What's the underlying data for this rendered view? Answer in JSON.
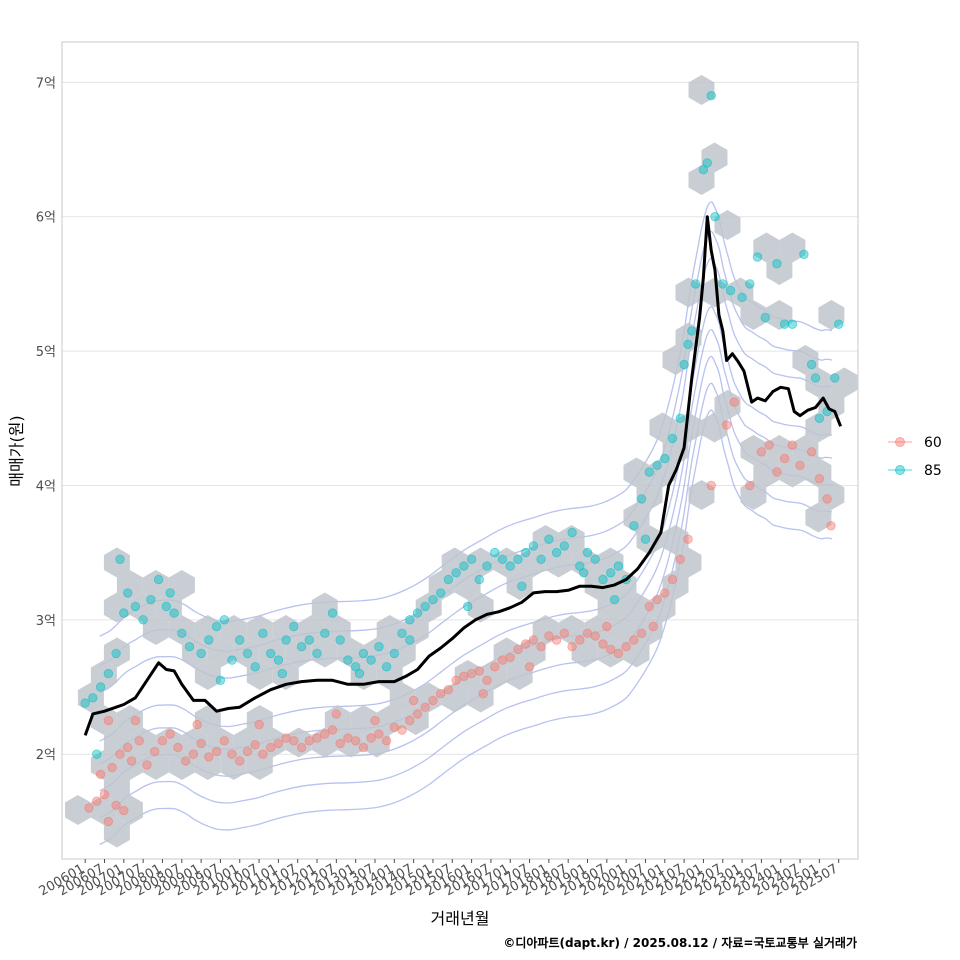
{
  "chart_data": {
    "type": "scatter",
    "xlabel": "거래년월",
    "ylabel": "매매가(원)",
    "caption": "©디아파트(dapt.kr) / 2025.08.12 / 자료=국토교통부 실거래가",
    "y_ticks": [
      {
        "value": 2,
        "label": "2억"
      },
      {
        "value": 3,
        "label": "3억"
      },
      {
        "value": 4,
        "label": "4억"
      },
      {
        "value": 5,
        "label": "5억"
      },
      {
        "value": 6,
        "label": "6억"
      },
      {
        "value": 7,
        "label": "7억"
      }
    ],
    "ylim": [
      1.22,
      7.3
    ],
    "xlim": [
      2005.4,
      2026.0
    ],
    "x_ticks": [
      "200601",
      "200607",
      "200701",
      "200707",
      "200801",
      "200807",
      "200901",
      "200907",
      "201001",
      "201007",
      "201101",
      "201107",
      "201201",
      "201207",
      "201301",
      "201307",
      "201401",
      "201407",
      "201501",
      "201507",
      "201601",
      "201607",
      "201701",
      "201707",
      "201801",
      "201807",
      "201901",
      "201907",
      "202001",
      "202007",
      "202101",
      "202107",
      "202201",
      "202207",
      "202301",
      "202307",
      "202401",
      "202407",
      "202501",
      "202507"
    ],
    "legend": {
      "position": "right",
      "entries": [
        {
          "label": "60",
          "color": "#F8766D"
        },
        {
          "label": "85",
          "color": "#00BFC4"
        }
      ]
    },
    "hexbin_color": "#bfc5cc",
    "contour_color": "#6f86e0",
    "trend": {
      "name": "",
      "color": "#000000",
      "points": [
        [
          2006.0,
          2.14
        ],
        [
          2006.2,
          2.3
        ],
        [
          2006.5,
          2.32
        ],
        [
          2006.8,
          2.35
        ],
        [
          2007.0,
          2.37
        ],
        [
          2007.3,
          2.42
        ],
        [
          2007.6,
          2.55
        ],
        [
          2007.9,
          2.68
        ],
        [
          2008.1,
          2.63
        ],
        [
          2008.3,
          2.62
        ],
        [
          2008.5,
          2.52
        ],
        [
          2008.8,
          2.4
        ],
        [
          2009.1,
          2.4
        ],
        [
          2009.4,
          2.32
        ],
        [
          2009.7,
          2.34
        ],
        [
          2010.0,
          2.35
        ],
        [
          2010.4,
          2.42
        ],
        [
          2010.8,
          2.48
        ],
        [
          2011.2,
          2.52
        ],
        [
          2011.6,
          2.54
        ],
        [
          2012.0,
          2.55
        ],
        [
          2012.4,
          2.55
        ],
        [
          2012.8,
          2.52
        ],
        [
          2013.2,
          2.52
        ],
        [
          2013.6,
          2.54
        ],
        [
          2014.0,
          2.54
        ],
        [
          2014.3,
          2.58
        ],
        [
          2014.6,
          2.63
        ],
        [
          2014.9,
          2.73
        ],
        [
          2015.2,
          2.79
        ],
        [
          2015.5,
          2.86
        ],
        [
          2015.8,
          2.94
        ],
        [
          2016.1,
          3.0
        ],
        [
          2016.4,
          3.04
        ],
        [
          2016.7,
          3.06
        ],
        [
          2017.0,
          3.09
        ],
        [
          2017.3,
          3.13
        ],
        [
          2017.6,
          3.2
        ],
        [
          2017.9,
          3.21
        ],
        [
          2018.2,
          3.21
        ],
        [
          2018.5,
          3.22
        ],
        [
          2018.8,
          3.25
        ],
        [
          2019.1,
          3.25
        ],
        [
          2019.4,
          3.24
        ],
        [
          2019.7,
          3.26
        ],
        [
          2020.0,
          3.3
        ],
        [
          2020.3,
          3.38
        ],
        [
          2020.6,
          3.5
        ],
        [
          2020.9,
          3.65
        ],
        [
          2021.1,
          4.0
        ],
        [
          2021.3,
          4.12
        ],
        [
          2021.5,
          4.28
        ],
        [
          2021.7,
          4.8
        ],
        [
          2021.9,
          5.25
        ],
        [
          2022.0,
          5.55
        ],
        [
          2022.1,
          6.0
        ],
        [
          2022.2,
          5.75
        ],
        [
          2022.3,
          5.6
        ],
        [
          2022.4,
          5.27
        ],
        [
          2022.5,
          5.15
        ],
        [
          2022.6,
          4.93
        ],
        [
          2022.75,
          4.98
        ],
        [
          2022.9,
          4.92
        ],
        [
          2023.05,
          4.85
        ],
        [
          2023.25,
          4.62
        ],
        [
          2023.4,
          4.65
        ],
        [
          2023.6,
          4.63
        ],
        [
          2023.8,
          4.7
        ],
        [
          2024.0,
          4.73
        ],
        [
          2024.2,
          4.72
        ],
        [
          2024.35,
          4.55
        ],
        [
          2024.5,
          4.52
        ],
        [
          2024.7,
          4.56
        ],
        [
          2024.9,
          4.58
        ],
        [
          2025.1,
          4.65
        ],
        [
          2025.25,
          4.57
        ],
        [
          2025.4,
          4.55
        ],
        [
          2025.55,
          4.44
        ]
      ]
    },
    "series": [
      {
        "name": "60",
        "color": "#F8766D",
        "points": [
          [
            2006.1,
            1.6
          ],
          [
            2006.3,
            1.65
          ],
          [
            2006.5,
            1.7
          ],
          [
            2006.6,
            1.5
          ],
          [
            2006.8,
            1.62
          ],
          [
            2007.0,
            1.58
          ],
          [
            2006.4,
            1.85
          ],
          [
            2006.7,
            1.9
          ],
          [
            2006.9,
            2.0
          ],
          [
            2007.1,
            2.05
          ],
          [
            2007.2,
            1.95
          ],
          [
            2007.4,
            2.1
          ],
          [
            2007.6,
            1.92
          ],
          [
            2007.8,
            2.02
          ],
          [
            2008.0,
            2.1
          ],
          [
            2008.2,
            2.15
          ],
          [
            2008.4,
            2.05
          ],
          [
            2008.6,
            1.95
          ],
          [
            2008.8,
            2.0
          ],
          [
            2009.0,
            2.08
          ],
          [
            2009.2,
            1.98
          ],
          [
            2009.4,
            2.02
          ],
          [
            2009.6,
            2.1
          ],
          [
            2009.8,
            2.0
          ],
          [
            2010.0,
            1.95
          ],
          [
            2010.2,
            2.02
          ],
          [
            2010.4,
            2.07
          ],
          [
            2010.6,
            2.0
          ],
          [
            2010.8,
            2.05
          ],
          [
            2011.0,
            2.08
          ],
          [
            2011.2,
            2.12
          ],
          [
            2011.4,
            2.1
          ],
          [
            2011.6,
            2.05
          ],
          [
            2011.8,
            2.1
          ],
          [
            2012.0,
            2.12
          ],
          [
            2012.2,
            2.15
          ],
          [
            2012.4,
            2.18
          ],
          [
            2012.6,
            2.08
          ],
          [
            2012.8,
            2.12
          ],
          [
            2013.0,
            2.1
          ],
          [
            2013.2,
            2.05
          ],
          [
            2013.4,
            2.12
          ],
          [
            2013.6,
            2.15
          ],
          [
            2013.8,
            2.1
          ],
          [
            2014.0,
            2.2
          ],
          [
            2014.2,
            2.18
          ],
          [
            2014.4,
            2.25
          ],
          [
            2014.6,
            2.3
          ],
          [
            2014.8,
            2.35
          ],
          [
            2015.0,
            2.4
          ],
          [
            2015.2,
            2.45
          ],
          [
            2015.4,
            2.48
          ],
          [
            2015.6,
            2.55
          ],
          [
            2015.8,
            2.58
          ],
          [
            2016.0,
            2.6
          ],
          [
            2016.2,
            2.62
          ],
          [
            2016.4,
            2.55
          ],
          [
            2016.6,
            2.65
          ],
          [
            2016.8,
            2.7
          ],
          [
            2017.0,
            2.72
          ],
          [
            2017.2,
            2.78
          ],
          [
            2017.4,
            2.82
          ],
          [
            2017.6,
            2.85
          ],
          [
            2017.8,
            2.8
          ],
          [
            2018.0,
            2.88
          ],
          [
            2018.2,
            2.85
          ],
          [
            2018.4,
            2.9
          ],
          [
            2018.6,
            2.8
          ],
          [
            2018.8,
            2.85
          ],
          [
            2019.0,
            2.9
          ],
          [
            2019.2,
            2.88
          ],
          [
            2019.4,
            2.82
          ],
          [
            2019.6,
            2.78
          ],
          [
            2019.8,
            2.75
          ],
          [
            2020.0,
            2.8
          ],
          [
            2020.2,
            2.85
          ],
          [
            2020.4,
            2.9
          ],
          [
            2020.6,
            3.1
          ],
          [
            2020.8,
            3.15
          ],
          [
            2021.0,
            3.2
          ],
          [
            2021.2,
            3.3
          ],
          [
            2021.4,
            3.45
          ],
          [
            2021.6,
            3.6
          ],
          [
            2022.2,
            4.0
          ],
          [
            2022.6,
            4.45
          ],
          [
            2022.8,
            4.62
          ],
          [
            2023.2,
            4.0
          ],
          [
            2023.5,
            4.25
          ],
          [
            2023.7,
            4.3
          ],
          [
            2023.9,
            4.1
          ],
          [
            2024.1,
            4.2
          ],
          [
            2024.3,
            4.3
          ],
          [
            2024.5,
            4.15
          ],
          [
            2024.8,
            4.25
          ],
          [
            2025.0,
            4.05
          ],
          [
            2025.2,
            3.9
          ],
          [
            2025.3,
            3.7
          ],
          [
            2006.6,
            2.25
          ],
          [
            2007.3,
            2.25
          ],
          [
            2008.9,
            2.22
          ],
          [
            2010.5,
            2.22
          ],
          [
            2012.5,
            2.3
          ],
          [
            2013.5,
            2.25
          ],
          [
            2014.5,
            2.4
          ],
          [
            2016.3,
            2.45
          ],
          [
            2017.5,
            2.65
          ],
          [
            2019.5,
            2.95
          ],
          [
            2020.7,
            2.95
          ]
        ]
      },
      {
        "name": "85",
        "color": "#00BFC4",
        "points": [
          [
            2006.0,
            2.38
          ],
          [
            2006.2,
            2.42
          ],
          [
            2006.4,
            2.5
          ],
          [
            2006.6,
            2.6
          ],
          [
            2006.8,
            2.75
          ],
          [
            2007.0,
            3.05
          ],
          [
            2007.1,
            3.2
          ],
          [
            2007.3,
            3.1
          ],
          [
            2007.5,
            3.0
          ],
          [
            2007.7,
            3.15
          ],
          [
            2007.9,
            3.3
          ],
          [
            2008.1,
            3.1
          ],
          [
            2008.3,
            3.05
          ],
          [
            2008.5,
            2.9
          ],
          [
            2008.7,
            2.8
          ],
          [
            2009.0,
            2.75
          ],
          [
            2009.2,
            2.85
          ],
          [
            2009.4,
            2.95
          ],
          [
            2009.6,
            3.0
          ],
          [
            2009.8,
            2.7
          ],
          [
            2010.0,
            2.85
          ],
          [
            2010.2,
            2.75
          ],
          [
            2010.4,
            2.65
          ],
          [
            2010.6,
            2.9
          ],
          [
            2010.8,
            2.75
          ],
          [
            2011.0,
            2.7
          ],
          [
            2011.2,
            2.85
          ],
          [
            2011.4,
            2.95
          ],
          [
            2011.6,
            2.8
          ],
          [
            2011.8,
            2.85
          ],
          [
            2012.0,
            2.75
          ],
          [
            2012.2,
            2.9
          ],
          [
            2012.4,
            3.05
          ],
          [
            2012.6,
            2.85
          ],
          [
            2012.8,
            2.7
          ],
          [
            2013.0,
            2.65
          ],
          [
            2013.2,
            2.75
          ],
          [
            2013.4,
            2.7
          ],
          [
            2013.6,
            2.8
          ],
          [
            2013.8,
            2.65
          ],
          [
            2014.0,
            2.75
          ],
          [
            2014.2,
            2.9
          ],
          [
            2014.4,
            3.0
          ],
          [
            2014.6,
            3.05
          ],
          [
            2014.8,
            3.1
          ],
          [
            2015.0,
            3.15
          ],
          [
            2015.2,
            3.2
          ],
          [
            2015.4,
            3.3
          ],
          [
            2015.6,
            3.35
          ],
          [
            2015.8,
            3.4
          ],
          [
            2016.0,
            3.45
          ],
          [
            2016.2,
            3.3
          ],
          [
            2016.4,
            3.4
          ],
          [
            2016.6,
            3.5
          ],
          [
            2016.8,
            3.45
          ],
          [
            2017.0,
            3.4
          ],
          [
            2017.2,
            3.45
          ],
          [
            2017.4,
            3.5
          ],
          [
            2017.6,
            3.55
          ],
          [
            2017.8,
            3.45
          ],
          [
            2018.0,
            3.6
          ],
          [
            2018.2,
            3.5
          ],
          [
            2018.4,
            3.55
          ],
          [
            2018.6,
            3.65
          ],
          [
            2018.8,
            3.4
          ],
          [
            2019.0,
            3.5
          ],
          [
            2019.2,
            3.45
          ],
          [
            2019.4,
            3.3
          ],
          [
            2019.6,
            3.35
          ],
          [
            2019.8,
            3.4
          ],
          [
            2020.0,
            3.3
          ],
          [
            2020.2,
            3.7
          ],
          [
            2020.4,
            3.9
          ],
          [
            2020.6,
            4.1
          ],
          [
            2020.8,
            4.15
          ],
          [
            2021.0,
            4.2
          ],
          [
            2021.2,
            4.35
          ],
          [
            2021.4,
            4.5
          ],
          [
            2021.5,
            4.9
          ],
          [
            2021.6,
            5.05
          ],
          [
            2021.7,
            5.15
          ],
          [
            2021.8,
            5.5
          ],
          [
            2022.0,
            6.35
          ],
          [
            2022.1,
            6.4
          ],
          [
            2022.2,
            6.9
          ],
          [
            2022.3,
            6.0
          ],
          [
            2022.5,
            5.5
          ],
          [
            2022.7,
            5.45
          ],
          [
            2023.0,
            5.4
          ],
          [
            2023.2,
            5.5
          ],
          [
            2023.4,
            5.7
          ],
          [
            2023.6,
            5.25
          ],
          [
            2023.9,
            5.65
          ],
          [
            2024.1,
            5.2
          ],
          [
            2024.3,
            5.2
          ],
          [
            2024.6,
            5.72
          ],
          [
            2024.8,
            4.9
          ],
          [
            2024.9,
            4.8
          ],
          [
            2025.0,
            4.5
          ],
          [
            2025.2,
            4.55
          ],
          [
            2025.4,
            4.8
          ],
          [
            2025.5,
            5.2
          ],
          [
            2006.3,
            2.0
          ],
          [
            2006.9,
            3.45
          ],
          [
            2008.2,
            3.2
          ],
          [
            2009.5,
            2.55
          ],
          [
            2011.1,
            2.6
          ],
          [
            2013.1,
            2.6
          ],
          [
            2014.4,
            2.85
          ],
          [
            2015.9,
            3.1
          ],
          [
            2017.3,
            3.25
          ],
          [
            2018.9,
            3.35
          ],
          [
            2019.7,
            3.15
          ],
          [
            2020.5,
            3.6
          ]
        ]
      }
    ]
  }
}
